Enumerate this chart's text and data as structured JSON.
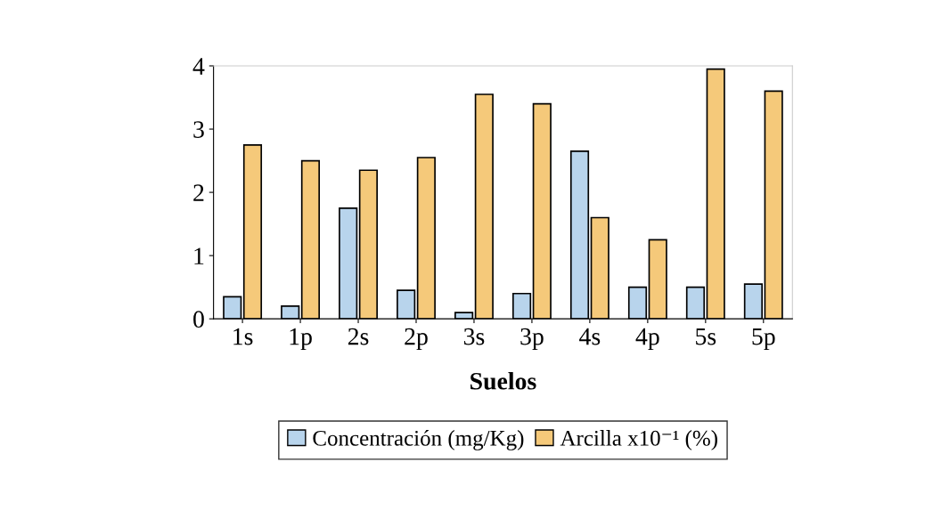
{
  "chart_data": {
    "type": "bar",
    "xlabel": "Suelos",
    "categories": [
      "1s",
      "1p",
      "2s",
      "2p",
      "3s",
      "3p",
      "4s",
      "4p",
      "5s",
      "5p"
    ],
    "series": [
      {
        "name": "Concentración (mg/Kg)",
        "color": "#b8d4ec",
        "values": [
          0.35,
          0.2,
          1.75,
          0.45,
          0.1,
          0.4,
          2.65,
          0.5,
          0.5,
          0.55
        ]
      },
      {
        "name": "Arcilla x10⁻¹ (%)",
        "color": "#f5c97a",
        "values": [
          2.75,
          2.5,
          2.35,
          2.55,
          3.55,
          3.4,
          1.6,
          1.25,
          3.95,
          3.6
        ]
      }
    ],
    "ylim": [
      0,
      4
    ],
    "yticks": [
      0,
      1,
      2,
      3,
      4
    ],
    "grid": false,
    "legend": "bottom"
  }
}
